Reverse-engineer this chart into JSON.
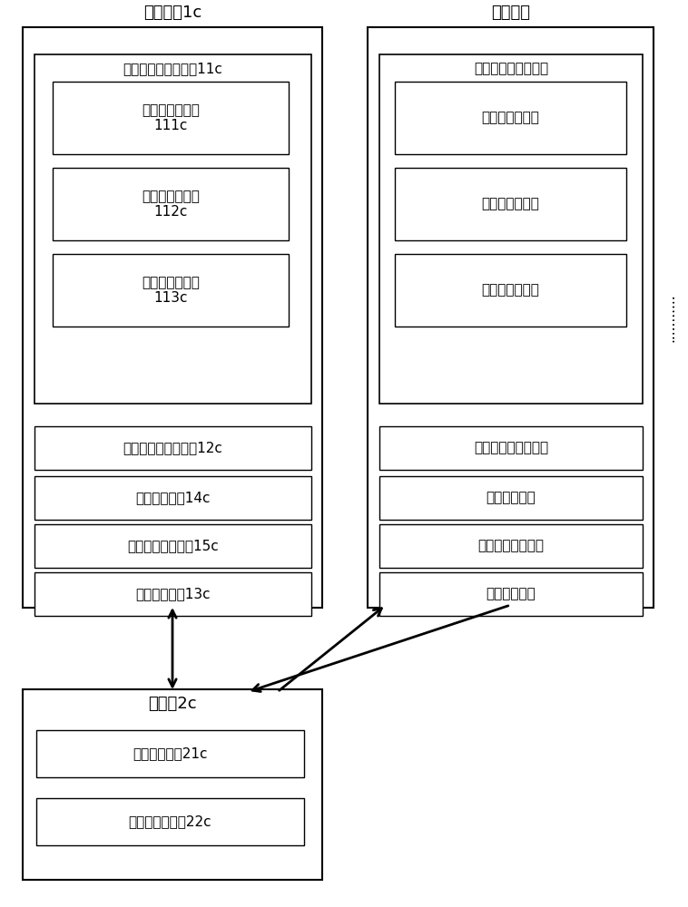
{
  "bg_color": "#ffffff",
  "line_color": "#000000",
  "left_terminal_title": "网络终端1c",
  "right_terminal_title": "网络终端",
  "server_title": "服务器2c",
  "left_struct_label": "知识点结构显示模块11c",
  "right_struct_label": "知识点结构显示模块",
  "left_sub": [
    {
      "label": "星状图显示单元\n111c"
    },
    {
      "label": "树形图显示单元\n112c"
    },
    {
      "label": "蕴含图显示单元\n113c"
    }
  ],
  "right_sub": [
    {
      "label": "星状图显示单元"
    },
    {
      "label": "树形图显示单元"
    },
    {
      "label": "蕴含图显示单元"
    }
  ],
  "left_bottom": [
    "知识点内容显示模块12c",
    "手势识别模块14c",
    "显示模式切换模块15c",
    "第一传输模块13c"
  ],
  "right_bottom": [
    "知识点内容显示模块",
    "手势识别模块",
    "显示模式切换模块",
    "第一传输模块"
  ],
  "server_inner": [
    "第二传输模块21c",
    "知识点存储模块22c"
  ],
  "dots": "···········"
}
